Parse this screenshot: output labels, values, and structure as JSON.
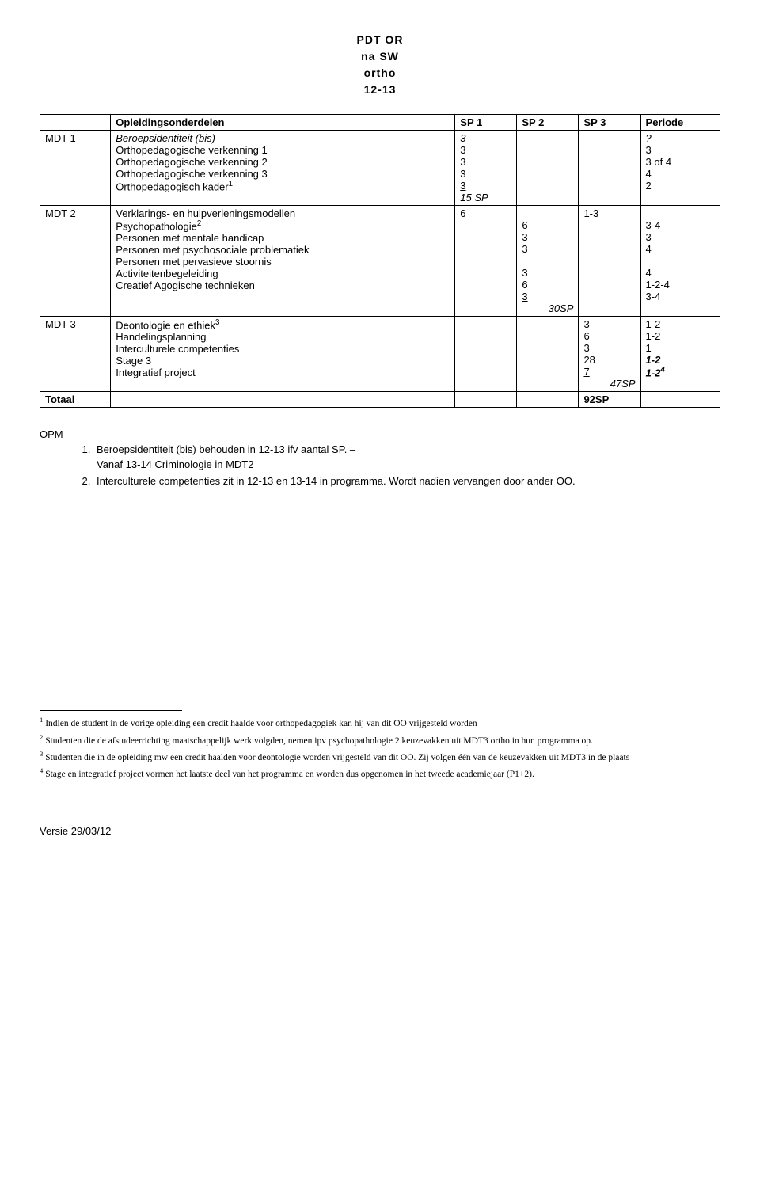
{
  "header": {
    "line1": "PDT OR",
    "line2": "na SW",
    "line3": "ortho",
    "line4": "12-13"
  },
  "table": {
    "headers": {
      "col1": "",
      "col2": "Opleidingsonderdelen",
      "col3": "SP 1",
      "col4": "SP 2",
      "col5": "SP 3",
      "col6": "Periode"
    },
    "rows": {
      "mdt1": {
        "label": "MDT 1",
        "items": {
          "r1": {
            "name": "Beroepsidentiteit (bis)",
            "sp1": "3",
            "per": "?"
          },
          "r2": {
            "name": "Orthopedagogische verkenning 1",
            "sp1": "3",
            "per": "3"
          },
          "r3": {
            "name": "Orthopedagogische verkenning 2",
            "sp1": "3",
            "per": "3 of 4"
          },
          "r4": {
            "name": "Orthopedagogische verkenning 3",
            "sp1": "3",
            "per": "4"
          },
          "r5": {
            "name": "Orthopedagogisch kader",
            "sup": "1",
            "sp1": "3",
            "per": "2"
          },
          "subtotal": "15 SP"
        }
      },
      "mdt2": {
        "label": "MDT 2",
        "items": {
          "r1": {
            "name": "Verklarings- en hulpverleningsmodellen",
            "sp1": "6",
            "sp3": "1-3"
          },
          "r2": {
            "name": "Psychopathologie",
            "sup": "2",
            "sp2": "6",
            "per": "3-4"
          },
          "r3": {
            "name": "Personen met mentale handicap",
            "sp2": "3",
            "per": "3"
          },
          "r4": {
            "name": "Personen met psychosociale problematiek",
            "sp2": "3",
            "per": "4"
          },
          "r5": {
            "name": "Personen met pervasieve stoornis",
            "sp2": "3",
            "per": "4"
          },
          "r6": {
            "name": "Activiteitenbegeleiding",
            "sp2": "6",
            "per": "1-2-4"
          },
          "r7": {
            "name": "Creatief Agogische technieken",
            "sp2": "3",
            "per": "3-4"
          },
          "subtotal": "30SP"
        }
      },
      "mdt3": {
        "label": "MDT 3",
        "items": {
          "r1": {
            "name": "Deontologie en ethiek",
            "sup": "3",
            "sp3": "3",
            "per": "1-2"
          },
          "r2": {
            "name": "Handelingsplanning",
            "sp3": "6",
            "per": "1-2"
          },
          "r3": {
            "name": "Interculturele competenties",
            "sp3": "3",
            "per": "1"
          },
          "r4": {
            "name": "Stage 3",
            "sp3": "28",
            "per": "1-2"
          },
          "r5": {
            "name": "Integratief project",
            "sp3": "7",
            "per": "1-2",
            "persup": "4"
          },
          "subtotal": "47SP"
        }
      },
      "total": {
        "label": "Totaal",
        "value": "92SP"
      }
    }
  },
  "notes": {
    "opm": "OPM",
    "n1a": "Beroepsidentiteit (bis) behouden in 12-13 ifv aantal SP. –",
    "n1b": "Vanaf 13-14 Criminologie in MDT2",
    "n2": "Interculturele competenties zit in 12-13 en 13-14 in programma. Wordt nadien vervangen door ander OO."
  },
  "footnotes": {
    "f1": "Indien de student in de vorige opleiding een credit haalde voor orthopedagogiek kan hij van dit OO vrijgesteld worden",
    "f2": "Studenten die de afstudeerrichting maatschappelijk werk volgden, nemen ipv psychopathologie 2 keuzevakken uit MDT3 ortho in hun programma op.",
    "f3": "Studenten die in de opleiding mw een credit haalden voor deontologie worden vrijgesteld van dit OO. Zij volgen één van de keuzevakken uit MDT3 in de plaats",
    "f4": "Stage en integratief project vormen het laatste deel van het programma en worden dus opgenomen in het tweede academiejaar (P1+2)."
  },
  "version": "Versie 29/03/12"
}
